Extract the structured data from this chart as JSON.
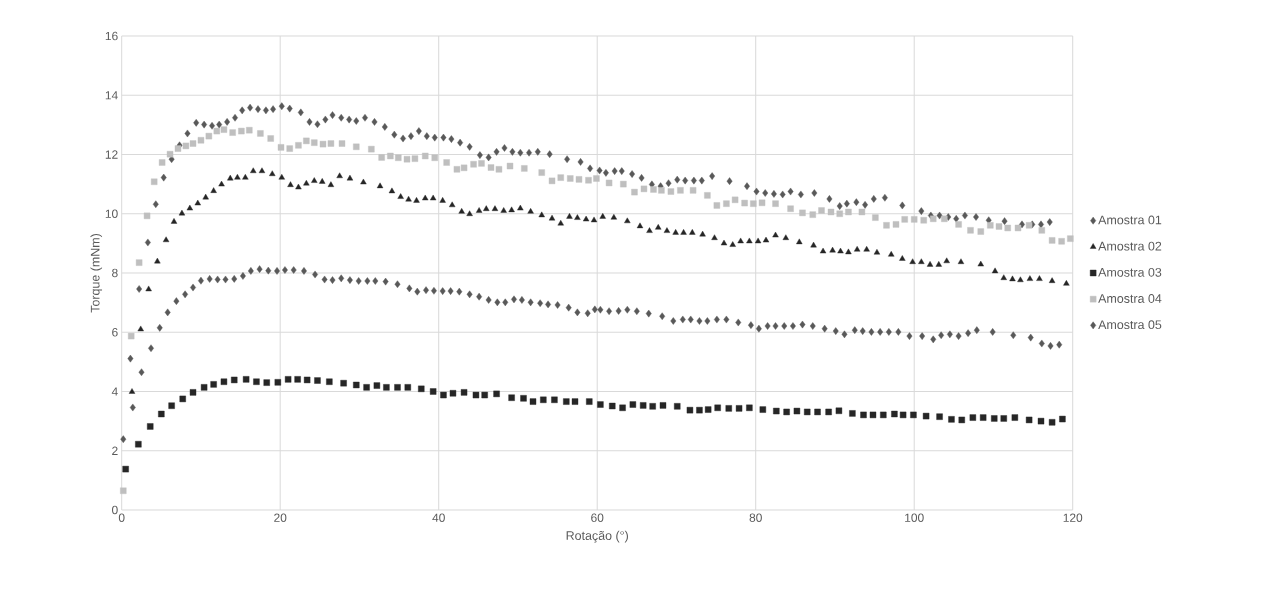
{
  "chart_data": {
    "type": "scatter",
    "xlabel": "Rotação (°)",
    "ylabel": "Torque (mNm)",
    "xlim": [
      0,
      120
    ],
    "ylim": [
      0,
      16
    ],
    "xticks": [
      0,
      20,
      40,
      60,
      80,
      100,
      120
    ],
    "yticks": [
      0,
      2,
      4,
      6,
      8,
      10,
      12,
      14,
      16
    ],
    "grid": true,
    "legend": "right",
    "series": [
      {
        "name": "Amostra 01",
        "color": "#595959",
        "marker": "diamond",
        "x": [
          0.2,
          1.1,
          2.2,
          3.3,
          4.3,
          5.3,
          6.3,
          7.3,
          8.3,
          9.4,
          10.4,
          11.4,
          12.3,
          13.3,
          14.3,
          15.2,
          16.2,
          17.2,
          18.2,
          19.1,
          20.2,
          21.2,
          22.6,
          23.7,
          24.7,
          25.7,
          26.6,
          27.7,
          28.7,
          29.6,
          30.7,
          31.9,
          33.2,
          34.4,
          35.5,
          36.5,
          37.5,
          38.5,
          39.5,
          40.6,
          41.6,
          42.7,
          43.9,
          45.2,
          46.3,
          47.3,
          48.3,
          49.3,
          50.3,
          51.4,
          52.5,
          54,
          56.2,
          57.9,
          59.1,
          60.3,
          61.1,
          62.2,
          63.1,
          64.4,
          65.6,
          66.9,
          68,
          69,
          70.1,
          71.1,
          72.2,
          73.2,
          74.5,
          76.7,
          78.9,
          80.1,
          81.2,
          82.3,
          83.4,
          84.4,
          85.7,
          87.4,
          89.3,
          90.6,
          91.5,
          92.7,
          93.8,
          94.9,
          96.3,
          98.5,
          100.9,
          102.1,
          103.2,
          104.3,
          105.3,
          106.4,
          107.8,
          109.4,
          111.4,
          113.6,
          114.9,
          116,
          117.1
        ],
        "values": [
          2.39,
          5.11,
          7.46,
          9.03,
          10.32,
          11.22,
          11.84,
          12.31,
          12.71,
          13.07,
          13.01,
          12.97,
          13.01,
          13.1,
          13.24,
          13.49,
          13.58,
          13.53,
          13.49,
          13.53,
          13.63,
          13.55,
          13.42,
          13.1,
          13.02,
          13.18,
          13.33,
          13.24,
          13.18,
          13.13,
          13.24,
          13.1,
          12.93,
          12.67,
          12.54,
          12.62,
          12.79,
          12.62,
          12.57,
          12.57,
          12.52,
          12.4,
          12.26,
          11.98,
          11.9,
          12.09,
          12.22,
          12.09,
          12.06,
          12.06,
          12.09,
          12.01,
          11.84,
          11.75,
          11.53,
          11.46,
          11.38,
          11.44,
          11.44,
          11.34,
          11.21,
          10.99,
          10.93,
          11.03,
          11.15,
          11.12,
          11.12,
          11.12,
          11.27,
          11.1,
          10.93,
          10.75,
          10.7,
          10.67,
          10.65,
          10.75,
          10.65,
          10.7,
          10.5,
          10.26,
          10.34,
          10.39,
          10.3,
          10.5,
          10.54,
          10.28,
          10.09,
          9.94,
          9.94,
          9.89,
          9.83,
          9.94,
          9.89,
          9.78,
          9.75,
          9.64,
          9.64,
          9.64,
          9.72
        ]
      },
      {
        "name": "Amostra 02",
        "color": "#262626",
        "marker": "triangle",
        "x": [
          1.3,
          2.4,
          3.4,
          4.5,
          5.6,
          6.6,
          7.6,
          8.6,
          9.6,
          10.6,
          11.6,
          12.6,
          13.7,
          14.6,
          15.6,
          16.6,
          17.7,
          19,
          20.2,
          21.3,
          22.3,
          23.3,
          24.3,
          25.3,
          26.4,
          27.5,
          28.8,
          30.5,
          32.6,
          34.1,
          35.2,
          36.2,
          37.2,
          38.3,
          39.3,
          40.5,
          41.7,
          42.9,
          43.9,
          45.1,
          46,
          47.1,
          48.2,
          49.2,
          50.3,
          51.6,
          53,
          54.3,
          55.4,
          56.5,
          57.5,
          58.6,
          59.6,
          60.7,
          62.1,
          63.8,
          65.4,
          66.6,
          67.7,
          68.8,
          69.9,
          70.9,
          72,
          73.3,
          74.8,
          76,
          77.1,
          78.1,
          79.2,
          80.3,
          81.3,
          82.5,
          83.8,
          85.5,
          87.3,
          88.5,
          89.7,
          90.7,
          91.7,
          92.8,
          94,
          95.3,
          97.1,
          98.5,
          99.8,
          100.9,
          102,
          103.1,
          104.1,
          105.9,
          108.4,
          110.2,
          111.3,
          112.4,
          113.4,
          114.6,
          115.8,
          117.4,
          119.2
        ],
        "values": [
          3.99,
          6.1,
          7.45,
          8.39,
          9.11,
          9.73,
          10.01,
          10.18,
          10.35,
          10.55,
          10.77,
          10.99,
          11.19,
          11.22,
          11.22,
          11.44,
          11.44,
          11.34,
          11.22,
          10.97,
          10.89,
          11.02,
          11.11,
          11.08,
          10.97,
          11.27,
          11.19,
          11.06,
          10.93,
          10.76,
          10.57,
          10.48,
          10.44,
          10.52,
          10.52,
          10.44,
          10.29,
          10.07,
          9.99,
          10.1,
          10.16,
          10.16,
          10.1,
          10.12,
          10.18,
          10.07,
          9.95,
          9.84,
          9.67,
          9.9,
          9.86,
          9.81,
          9.78,
          9.9,
          9.87,
          9.75,
          9.58,
          9.42,
          9.53,
          9.42,
          9.36,
          9.36,
          9.36,
          9.3,
          9.18,
          9.0,
          8.95,
          9.07,
          9.07,
          9.07,
          9.1,
          9.27,
          9.18,
          9.04,
          8.93,
          8.73,
          8.76,
          8.73,
          8.7,
          8.79,
          8.79,
          8.69,
          8.62,
          8.48,
          8.37,
          8.37,
          8.28,
          8.28,
          8.4,
          8.37,
          8.29,
          8.06,
          7.83,
          7.79,
          7.76,
          7.8,
          7.8,
          7.73,
          7.64
        ]
      },
      {
        "name": "Amostra 03",
        "color": "#262626",
        "marker": "square",
        "x": [
          0.5,
          2.1,
          3.6,
          5,
          6.3,
          7.7,
          9,
          10.4,
          11.6,
          12.9,
          14.2,
          15.7,
          17,
          18.3,
          19.7,
          21,
          22.2,
          23.4,
          24.7,
          26.2,
          28,
          29.6,
          30.9,
          32.2,
          33.4,
          34.8,
          36.1,
          37.8,
          39.3,
          40.6,
          41.8,
          43.2,
          44.7,
          45.8,
          47.3,
          49.2,
          50.7,
          51.9,
          53.2,
          54.6,
          56.1,
          57.2,
          59,
          60.4,
          61.9,
          63.2,
          64.5,
          65.8,
          67,
          68.3,
          70.1,
          71.7,
          72.9,
          74,
          75.2,
          76.6,
          77.9,
          79.2,
          80.9,
          82.6,
          83.9,
          85.2,
          86.5,
          87.8,
          89.2,
          90.5,
          92.2,
          93.6,
          94.8,
          96.1,
          97.5,
          98.6,
          99.9,
          101.5,
          103.2,
          104.7,
          106,
          107.4,
          108.7,
          110.1,
          111.3,
          112.7,
          114.5,
          116,
          117.4,
          118.7
        ],
        "values": [
          1.38,
          2.22,
          2.82,
          3.24,
          3.52,
          3.75,
          3.97,
          4.14,
          4.24,
          4.33,
          4.39,
          4.41,
          4.33,
          4.3,
          4.31,
          4.41,
          4.41,
          4.39,
          4.37,
          4.33,
          4.28,
          4.22,
          4.14,
          4.2,
          4.14,
          4.14,
          4.14,
          4.09,
          4.0,
          3.88,
          3.94,
          3.97,
          3.88,
          3.88,
          3.92,
          3.79,
          3.77,
          3.66,
          3.72,
          3.72,
          3.66,
          3.66,
          3.66,
          3.56,
          3.51,
          3.45,
          3.56,
          3.53,
          3.5,
          3.53,
          3.5,
          3.37,
          3.37,
          3.39,
          3.45,
          3.43,
          3.43,
          3.45,
          3.39,
          3.34,
          3.31,
          3.34,
          3.31,
          3.31,
          3.31,
          3.35,
          3.26,
          3.21,
          3.21,
          3.21,
          3.24,
          3.21,
          3.21,
          3.17,
          3.15,
          3.06,
          3.04,
          3.12,
          3.12,
          3.09,
          3.09,
          3.12,
          3.04,
          3.0,
          2.96,
          3.07
        ]
      },
      {
        "name": "Amostra 04",
        "color": "#bfbfbf",
        "marker": "square",
        "x": [
          0.2,
          1.2,
          2.2,
          3.2,
          4.1,
          5.1,
          6.1,
          7.1,
          8.1,
          9,
          10,
          11,
          12,
          12.9,
          14,
          15.1,
          16.1,
          17.5,
          18.8,
          20.1,
          21.2,
          22.3,
          23.3,
          24.3,
          25.4,
          26.4,
          27.8,
          29.6,
          31.5,
          32.8,
          33.9,
          34.9,
          36,
          37,
          38.3,
          39.5,
          41,
          42.3,
          43.2,
          44.4,
          45.4,
          46.6,
          47.6,
          49,
          50.8,
          53,
          54.3,
          55.4,
          56.6,
          57.7,
          58.9,
          59.9,
          61.5,
          63.3,
          64.7,
          65.9,
          67.1,
          68.1,
          69.3,
          70.5,
          72.1,
          73.9,
          75.1,
          76.3,
          77.4,
          78.6,
          79.7,
          80.8,
          82.5,
          84.4,
          85.9,
          87.2,
          88.3,
          89.5,
          90.6,
          91.7,
          93.4,
          95.1,
          96.5,
          97.7,
          98.8,
          100,
          101.2,
          102.4,
          103.8,
          105.6,
          107.1,
          108.4,
          109.6,
          110.7,
          111.8,
          113.1,
          114.5,
          116.1,
          117.4,
          118.6,
          119.7
        ],
        "values": [
          0.65,
          5.87,
          8.35,
          9.93,
          11.08,
          11.73,
          12.01,
          12.2,
          12.29,
          12.37,
          12.48,
          12.62,
          12.79,
          12.84,
          12.74,
          12.79,
          12.82,
          12.71,
          12.54,
          12.24,
          12.2,
          12.31,
          12.46,
          12.4,
          12.35,
          12.37,
          12.37,
          12.26,
          12.18,
          11.9,
          11.95,
          11.89,
          11.84,
          11.86,
          11.95,
          11.89,
          11.73,
          11.5,
          11.55,
          11.67,
          11.7,
          11.56,
          11.5,
          11.61,
          11.53,
          11.39,
          11.11,
          11.22,
          11.19,
          11.16,
          11.13,
          11.19,
          11.04,
          11.0,
          10.73,
          10.84,
          10.82,
          10.79,
          10.75,
          10.79,
          10.79,
          10.62,
          10.28,
          10.34,
          10.47,
          10.36,
          10.34,
          10.37,
          10.34,
          10.17,
          10.03,
          9.97,
          10.11,
          10.06,
          10.0,
          10.06,
          10.06,
          9.87,
          9.61,
          9.64,
          9.81,
          9.81,
          9.78,
          9.83,
          9.83,
          9.64,
          9.44,
          9.4,
          9.61,
          9.57,
          9.52,
          9.52,
          9.61,
          9.44,
          9.1,
          9.07,
          9.16
        ]
      },
      {
        "name": "Amostra 05",
        "color": "#595959",
        "marker": "diamond",
        "x": [
          1.4,
          2.5,
          3.7,
          4.8,
          5.8,
          6.9,
          8,
          9,
          10,
          11.1,
          12.1,
          13.1,
          14.2,
          15.3,
          16.3,
          17.4,
          18.5,
          19.6,
          20.6,
          21.7,
          23,
          24.4,
          25.6,
          26.6,
          27.7,
          28.8,
          29.9,
          31,
          32,
          33.3,
          34.8,
          36.3,
          37.3,
          38.4,
          39.4,
          40.5,
          41.5,
          42.6,
          43.9,
          45.1,
          46.3,
          47.4,
          48.4,
          49.5,
          50.5,
          51.6,
          52.8,
          53.8,
          55,
          56.4,
          57.5,
          58.8,
          59.7,
          60.4,
          61.5,
          62.7,
          63.8,
          65,
          66.5,
          68.2,
          69.6,
          70.8,
          71.8,
          72.9,
          73.9,
          75.1,
          76.3,
          77.8,
          79.4,
          80.4,
          81.5,
          82.5,
          83.6,
          84.7,
          85.9,
          87.2,
          88.7,
          90.1,
          91.2,
          92.5,
          93.5,
          94.6,
          95.7,
          96.8,
          98,
          99.4,
          101,
          102.4,
          103.4,
          104.5,
          105.6,
          106.8,
          107.9,
          109.9,
          112.5,
          114.7,
          116.1,
          117.2,
          118.3
        ],
        "values": [
          3.46,
          4.65,
          5.46,
          6.15,
          6.67,
          7.05,
          7.28,
          7.51,
          7.74,
          7.8,
          7.78,
          7.78,
          7.8,
          7.9,
          8.07,
          8.13,
          8.08,
          8.07,
          8.1,
          8.1,
          8.07,
          7.95,
          7.78,
          7.76,
          7.82,
          7.76,
          7.73,
          7.73,
          7.73,
          7.71,
          7.62,
          7.48,
          7.37,
          7.42,
          7.4,
          7.39,
          7.39,
          7.37,
          7.28,
          7.2,
          7.09,
          7.01,
          7.01,
          7.11,
          7.09,
          7.01,
          6.98,
          6.94,
          6.92,
          6.83,
          6.67,
          6.64,
          6.77,
          6.76,
          6.71,
          6.72,
          6.76,
          6.71,
          6.63,
          6.54,
          6.38,
          6.43,
          6.43,
          6.38,
          6.38,
          6.43,
          6.43,
          6.33,
          6.24,
          6.12,
          6.21,
          6.21,
          6.21,
          6.21,
          6.26,
          6.21,
          6.12,
          6.04,
          5.93,
          6.07,
          6.04,
          6.01,
          6.01,
          6.01,
          6.01,
          5.87,
          5.87,
          5.76,
          5.9,
          5.93,
          5.87,
          5.97,
          6.07,
          6.01,
          5.9,
          5.82,
          5.62,
          5.54,
          5.58
        ]
      }
    ]
  }
}
